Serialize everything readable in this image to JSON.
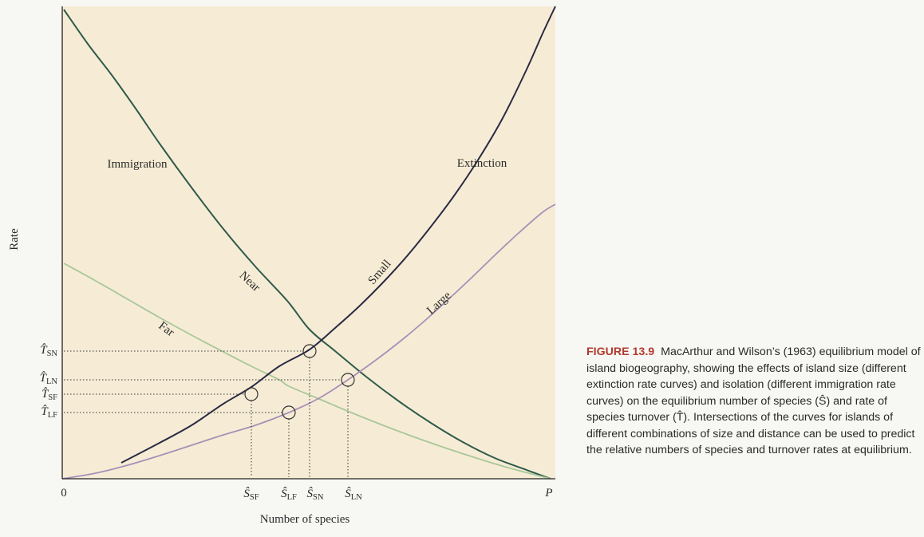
{
  "figure": {
    "ylabel": "Rate",
    "xlabel": "Number of species",
    "x_origin_label": "0",
    "x_end_label": "P",
    "curve_labels": {
      "immigration": "Immigration",
      "extinction": "Extinction",
      "near": "Near",
      "far": "Far",
      "small": "Small",
      "large": "Large"
    },
    "colors": {
      "background": "#f6ecd5",
      "near": "#2f5a4a",
      "far": "#a9c79a",
      "small": "#2a2a45",
      "large": "#a890b8"
    }
  },
  "chart_data": {
    "type": "line",
    "xlabel": "Number of species",
    "ylabel": "Rate",
    "series": [
      {
        "name": "Near",
        "kind": "immigration"
      },
      {
        "name": "Far",
        "kind": "immigration"
      },
      {
        "name": "Small",
        "kind": "extinction"
      },
      {
        "name": "Large",
        "kind": "extinction"
      }
    ],
    "equilibria": [
      {
        "s_label": "Ŝ",
        "s_sub": "SF",
        "t_label": "T̂",
        "t_sub": "SF"
      },
      {
        "s_label": "Ŝ",
        "s_sub": "LF",
        "t_label": "T̂",
        "t_sub": "LF"
      },
      {
        "s_label": "Ŝ",
        "s_sub": "SN",
        "t_label": "T̂",
        "t_sub": "SN"
      },
      {
        "s_label": "Ŝ",
        "s_sub": "LN",
        "t_label": "T̂",
        "t_sub": "LN"
      }
    ]
  },
  "caption": {
    "label": "FIGURE 13.9",
    "text": "MacArthur and Wilson’s (1963) equilibrium model of island biogeography, showing the effects of island size (different extinction rate curves) and isolation (different immigration rate curves) on the equilibrium number of species (Ŝ) and rate of species turnover (T̂). Intersections of the curves for islands of different combinations of size and distance can be used to predict the relative numbers of species and turnover rates at equilibrium."
  }
}
